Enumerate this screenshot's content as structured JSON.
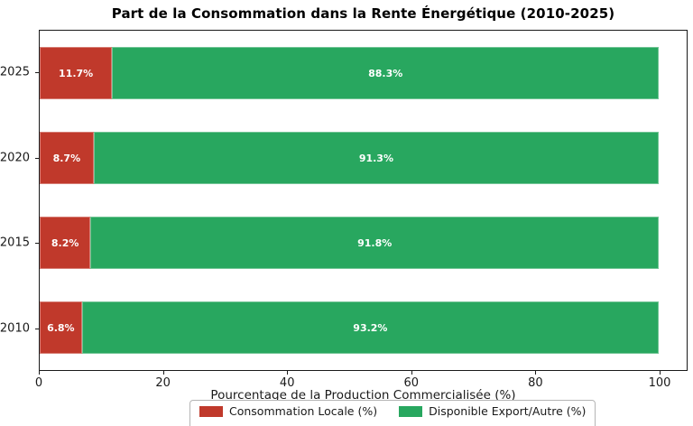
{
  "chart_data": {
    "type": "bar",
    "orientation": "horizontal",
    "stacked": true,
    "title": "Part de la Consommation dans la Rente Énergétique (2010-2025)",
    "xlabel": "Pourcentage de la Production Commercialisée (%)",
    "categories": [
      "2025",
      "2020",
      "2015",
      "2010"
    ],
    "series": [
      {
        "name": "Consommation Locale (%)",
        "color": "#c0392b",
        "values": [
          11.7,
          8.7,
          8.2,
          6.8
        ],
        "labels": [
          "11.7%",
          "8.7%",
          "8.2%",
          "6.8%"
        ]
      },
      {
        "name": "Disponible Export/Autre (%)",
        "color": "#28a75f",
        "values": [
          88.3,
          91.3,
          91.8,
          93.2
        ],
        "labels": [
          "88.3%",
          "91.3%",
          "91.8%",
          "93.2%"
        ]
      }
    ],
    "x_ticks": [
      {
        "value": 0,
        "label": "0"
      },
      {
        "value": 20,
        "label": "20"
      },
      {
        "value": 40,
        "label": "40"
      },
      {
        "value": 60,
        "label": "60"
      },
      {
        "value": 80,
        "label": "80"
      },
      {
        "value": 100,
        "label": "100"
      }
    ],
    "xlim": [
      0,
      104.5
    ],
    "grid": false,
    "legend_position": "bottom-center",
    "bar_label_color": "#ffffff",
    "spine_color": "#1a1a1a",
    "background_color": "#ffffff"
  }
}
